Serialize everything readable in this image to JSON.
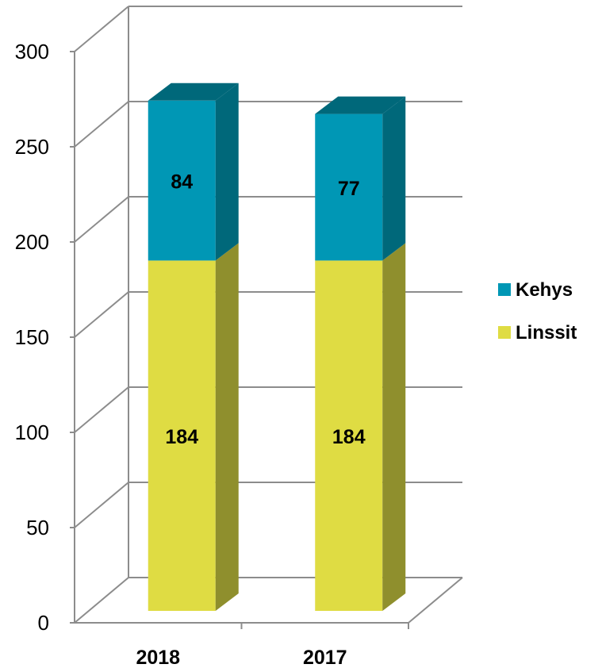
{
  "chart_data": {
    "type": "bar",
    "stacked": true,
    "three_d": true,
    "categories": [
      "2018",
      "2017"
    ],
    "series": [
      {
        "name": "Linssit",
        "values": [
          184,
          184
        ],
        "color": "#dfdc43",
        "side_color": "#8f8f2d"
      },
      {
        "name": "Kehys",
        "values": [
          84,
          77
        ],
        "color": "#0097b5",
        "side_color": "#00687a"
      }
    ],
    "yticks": [
      0,
      50,
      100,
      150,
      200,
      250,
      300
    ],
    "ylim": [
      0,
      300
    ],
    "grid": true,
    "legend": {
      "position": "right",
      "order": [
        "Kehys",
        "Linssit"
      ]
    },
    "title": "",
    "xlabel": "",
    "ylabel": ""
  }
}
